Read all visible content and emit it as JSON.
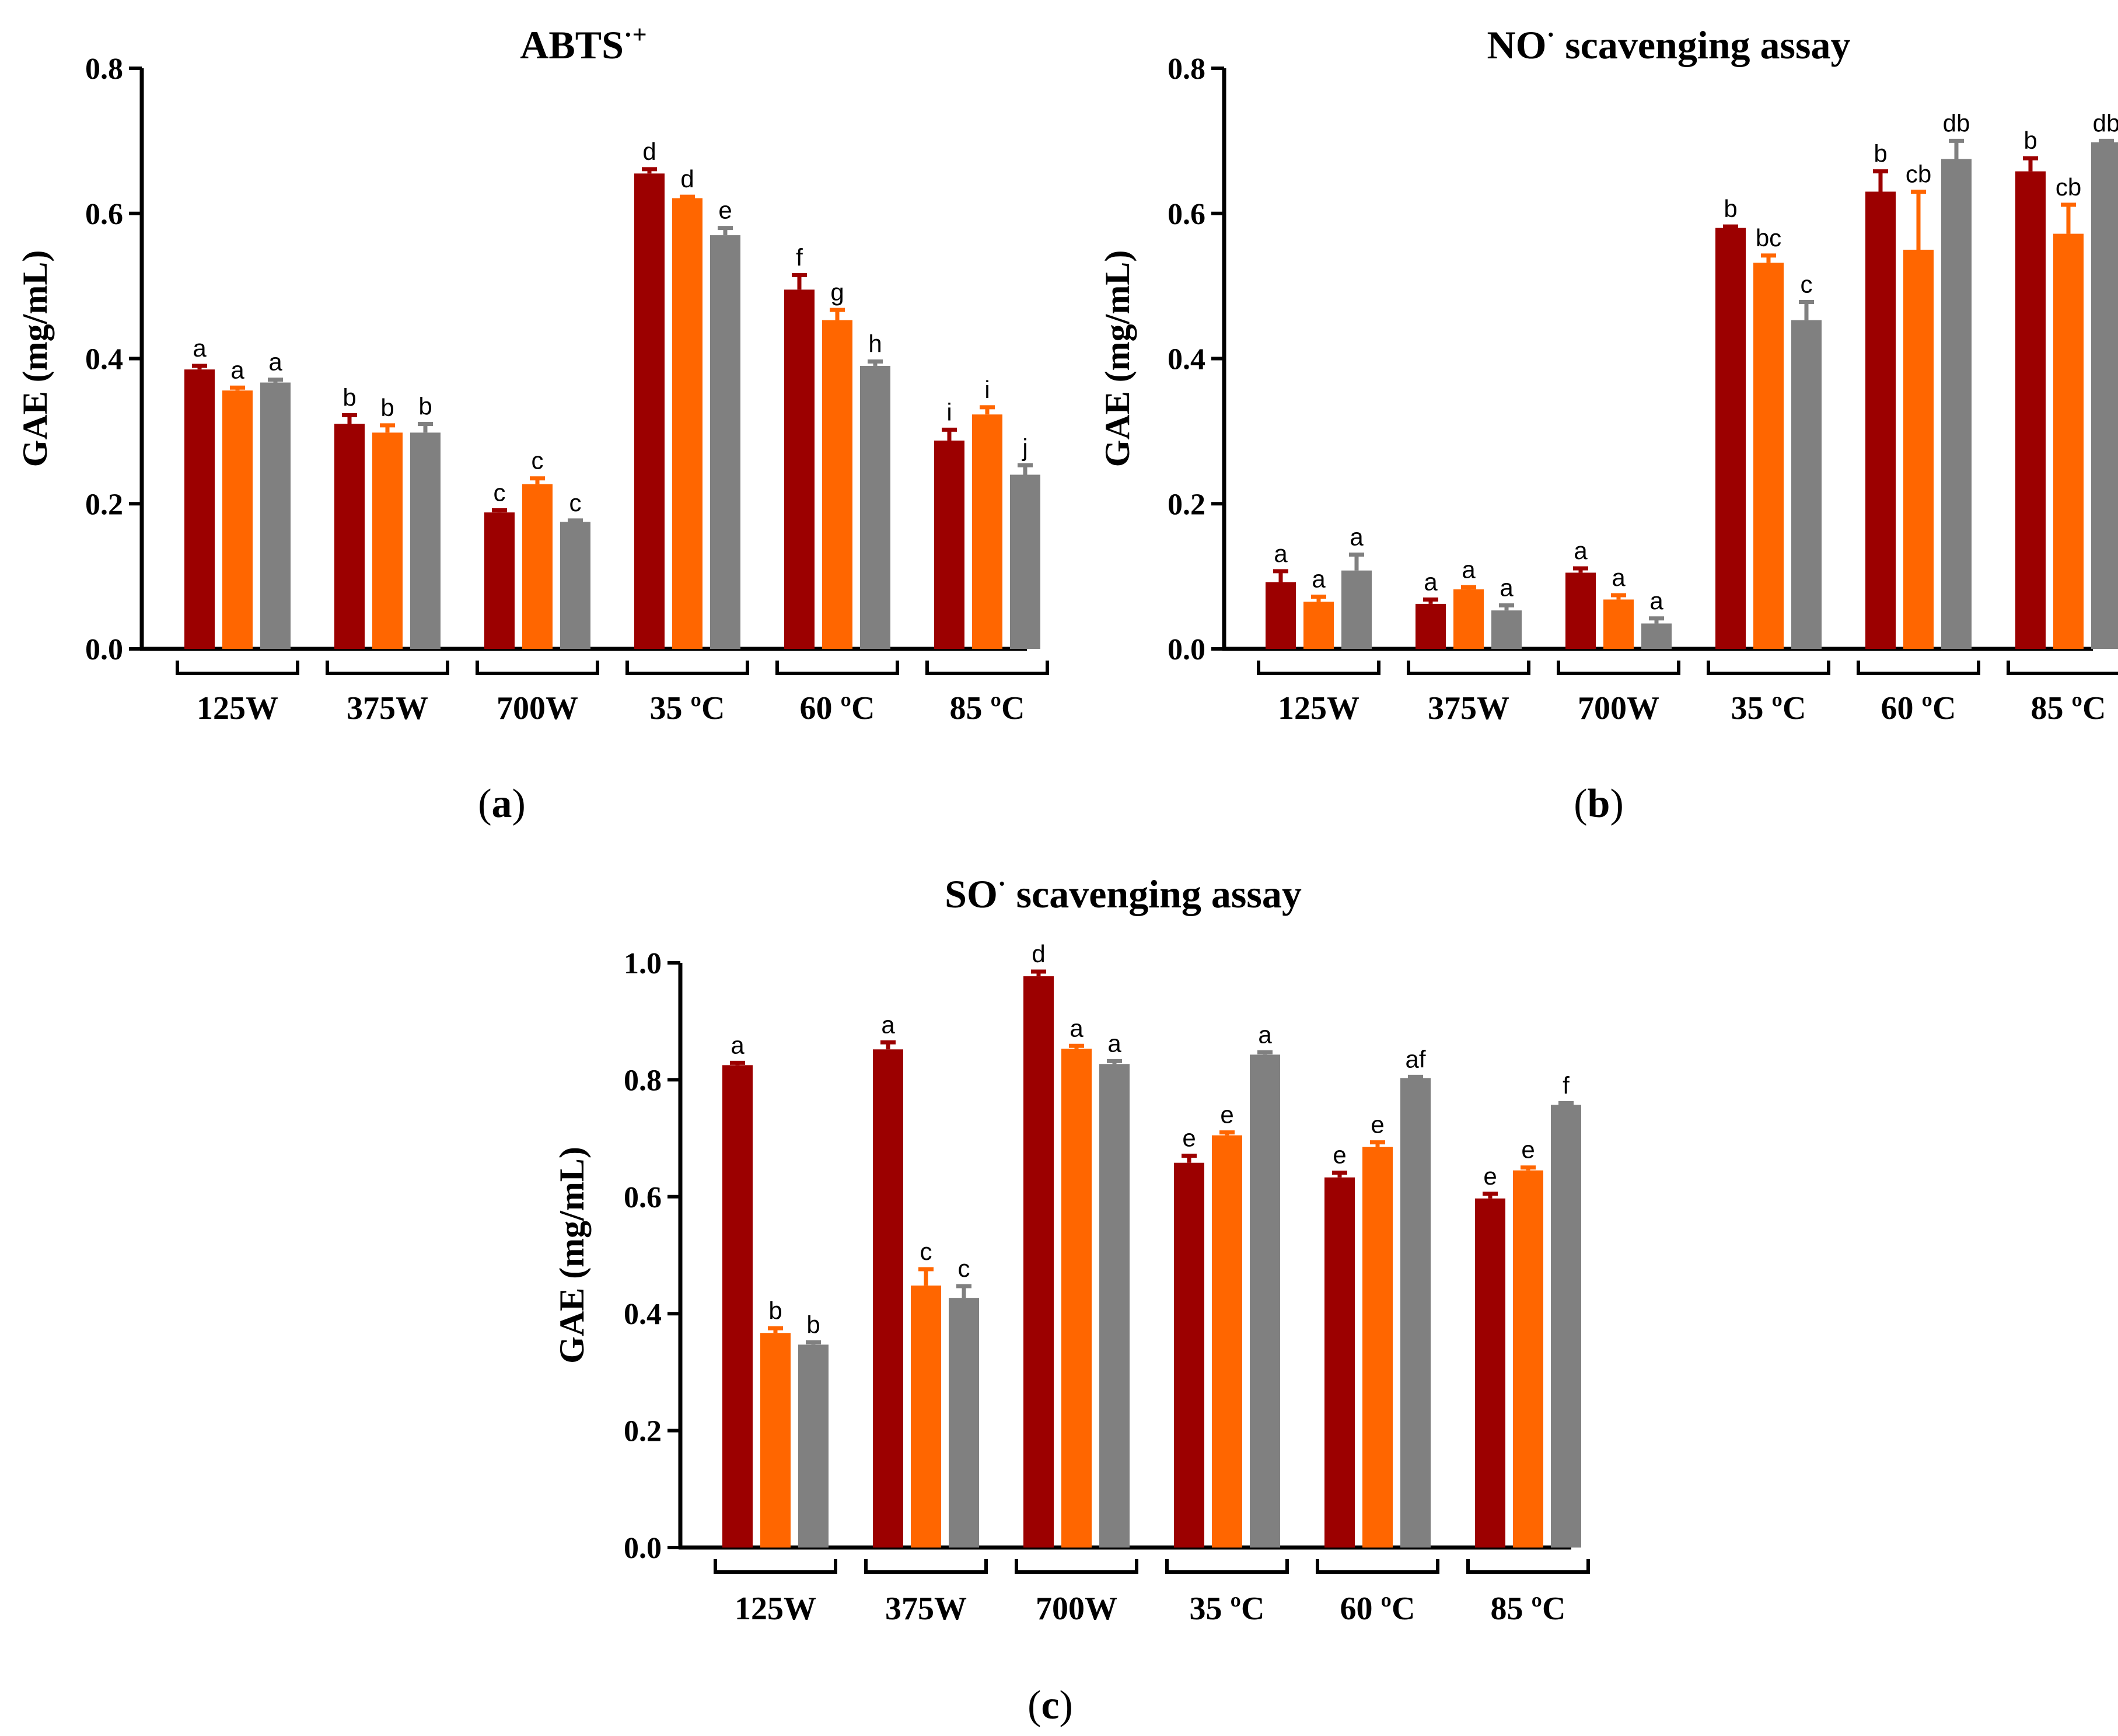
{
  "colors": {
    "series1": "#9c0000",
    "series2": "#ff6600",
    "series3": "#808080"
  },
  "chart_data": [
    {
      "type": "bar",
      "panel": "(a)",
      "panel_letter": "a",
      "title": "ABTS",
      "title_sup": "·+",
      "ylabel": "GAE (mg/mL)",
      "xlabel": "",
      "ylim": [
        0,
        0.8
      ],
      "yticks": [
        "0.0",
        "0.2",
        "0.4",
        "0.6",
        "0.8"
      ],
      "categories": [
        "125W",
        "375W",
        "700W",
        "35 ºC",
        "60 ºC",
        "85 ºC"
      ],
      "series": [
        {
          "values": [
            0.385,
            0.31,
            0.188,
            0.655,
            0.495,
            0.287
          ],
          "errors": [
            0.005,
            0.012,
            0.003,
            0.006,
            0.02,
            0.015
          ],
          "labels": [
            "a",
            "b",
            "c",
            "d",
            "f",
            "i"
          ]
        },
        {
          "values": [
            0.356,
            0.298,
            0.227,
            0.621,
            0.453,
            0.323
          ],
          "errors": [
            0.004,
            0.01,
            0.008,
            0.002,
            0.014,
            0.01
          ],
          "labels": [
            "a",
            "b",
            "c",
            "d",
            "g",
            "i"
          ]
        },
        {
          "values": [
            0.367,
            0.298,
            0.175,
            0.57,
            0.39,
            0.24
          ],
          "errors": [
            0.004,
            0.012,
            0.002,
            0.01,
            0.006,
            0.013
          ],
          "labels": [
            "a",
            "b",
            "c",
            "e",
            "h",
            "j"
          ]
        }
      ]
    },
    {
      "type": "bar",
      "panel": "(b)",
      "panel_letter": "b",
      "title": "NO",
      "title_sup": "·",
      "title_rest": " scavenging assay",
      "ylabel": "GAE (mg/mL)",
      "xlabel": "",
      "ylim": [
        0,
        0.8
      ],
      "yticks": [
        "0.0",
        "0.2",
        "0.4",
        "0.6",
        "0.8"
      ],
      "categories": [
        "125W",
        "375W",
        "700W",
        "35 ºC",
        "60 ºC",
        "85 ºC"
      ],
      "series": [
        {
          "values": [
            0.092,
            0.062,
            0.105,
            0.58,
            0.63,
            0.658
          ],
          "errors": [
            0.015,
            0.006,
            0.006,
            0.002,
            0.028,
            0.018
          ],
          "labels": [
            "a",
            "a",
            "a",
            "b",
            "b",
            "b"
          ]
        },
        {
          "values": [
            0.065,
            0.082,
            0.068,
            0.532,
            0.55,
            0.572
          ],
          "errors": [
            0.007,
            0.003,
            0.006,
            0.01,
            0.08,
            0.04
          ],
          "labels": [
            "a",
            "a",
            "a",
            "bc",
            "cb",
            "cb"
          ]
        },
        {
          "values": [
            0.108,
            0.053,
            0.035,
            0.453,
            0.675,
            0.698
          ],
          "errors": [
            0.022,
            0.007,
            0.007,
            0.025,
            0.025,
            0.002
          ],
          "labels": [
            "a",
            "a",
            "a",
            "c",
            "db",
            "db"
          ]
        }
      ]
    },
    {
      "type": "bar",
      "panel": "(c)",
      "panel_letter": "c",
      "title": "SO",
      "title_sup": "·",
      "title_rest": " scavenging assay",
      "ylabel": "GAE (mg/mL)",
      "xlabel": "",
      "ylim": [
        0,
        1.0
      ],
      "yticks": [
        "0.0",
        "0.2",
        "0.4",
        "0.6",
        "0.8",
        "1.0"
      ],
      "categories": [
        "125W",
        "375W",
        "700W",
        "35 ºC",
        "60 ºC",
        "85 ºC"
      ],
      "series": [
        {
          "values": [
            0.825,
            0.852,
            0.977,
            0.658,
            0.633,
            0.597
          ],
          "errors": [
            0.004,
            0.012,
            0.008,
            0.012,
            0.008,
            0.008
          ],
          "labels": [
            "a",
            "a",
            "d",
            "e",
            "e",
            "e"
          ]
        },
        {
          "values": [
            0.367,
            0.448,
            0.853,
            0.705,
            0.685,
            0.645
          ],
          "errors": [
            0.008,
            0.028,
            0.005,
            0.005,
            0.008,
            0.005
          ],
          "labels": [
            "b",
            "c",
            "a",
            "e",
            "e",
            "e"
          ]
        },
        {
          "values": [
            0.347,
            0.427,
            0.827,
            0.843,
            0.803,
            0.757
          ],
          "errors": [
            0.004,
            0.02,
            0.005,
            0.004,
            0.002,
            0.003
          ],
          "labels": [
            "b",
            "c",
            "a",
            "a",
            "af",
            "f"
          ]
        }
      ]
    }
  ]
}
